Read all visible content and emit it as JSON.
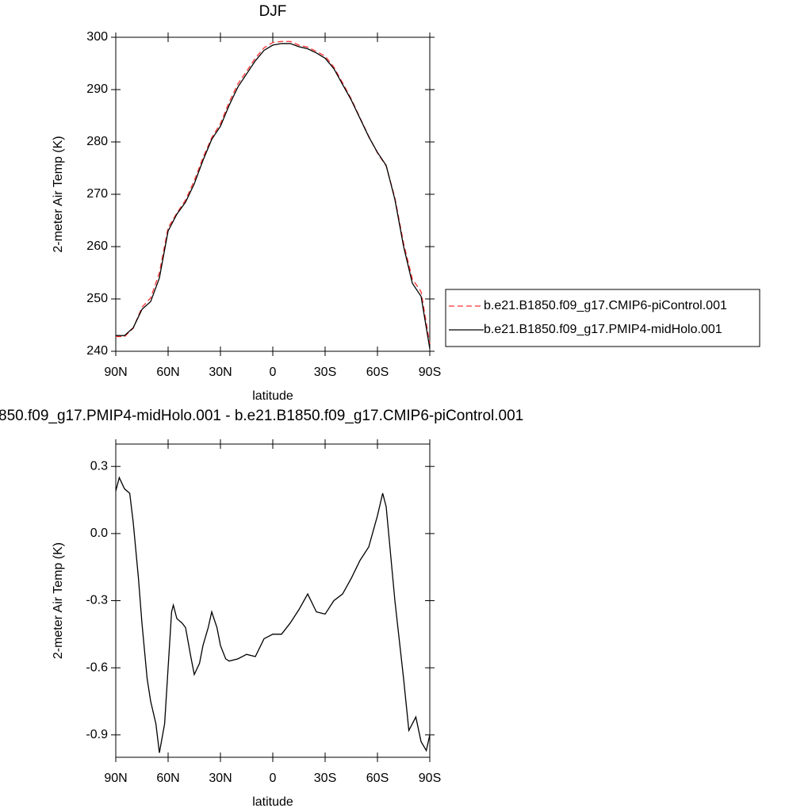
{
  "chart_data": [
    {
      "type": "line",
      "title": "DJF",
      "xlabel": "latitude",
      "ylabel": "2-meter Air Temp (K)",
      "x": [
        90,
        85,
        80,
        75,
        70,
        65,
        60,
        55,
        50,
        45,
        40,
        35,
        30,
        25,
        20,
        15,
        10,
        5,
        0,
        -5,
        -10,
        -15,
        -20,
        -25,
        -30,
        -35,
        -40,
        -45,
        -50,
        -55,
        -60,
        -65,
        -70,
        -75,
        -80,
        -85,
        -90
      ],
      "series": [
        {
          "name": "b.e21.B1850.f09_g17.CMIP6-piControl.001",
          "color": "#ff3030",
          "style": "dashed",
          "values": [
            242.8,
            242.8,
            244.4,
            248.4,
            250.2,
            255.0,
            263.6,
            266.4,
            268.9,
            272.6,
            277.0,
            280.8,
            283.5,
            287.6,
            291.1,
            293.5,
            296.0,
            298.0,
            299.0,
            299.2,
            299.2,
            298.5,
            298.1,
            297.3,
            296.4,
            294.3,
            291.3,
            288.2,
            284.6,
            281.1,
            277.9,
            275.4,
            269.3,
            260.6,
            253.8,
            251.4,
            241.4
          ]
        },
        {
          "name": "b.e21.B1850.f09_g17.PMIP4-midHolo.001",
          "color": "#000000",
          "style": "solid",
          "values": [
            243,
            243,
            244.5,
            248,
            249.5,
            254,
            263,
            266.2,
            268.5,
            272,
            276.5,
            280.5,
            283,
            287,
            290.5,
            293,
            295.5,
            297.5,
            298.5,
            298.8,
            298.8,
            298.2,
            297.8,
            297,
            296,
            294,
            291,
            288,
            284.5,
            281,
            278,
            275.5,
            269,
            260,
            253,
            250.5,
            240.5
          ]
        }
      ],
      "xlim": [
        90,
        -90
      ],
      "xticks": [
        {
          "value": 90,
          "label": "90N"
        },
        {
          "value": 60,
          "label": "60N"
        },
        {
          "value": 30,
          "label": "30N"
        },
        0,
        {
          "value": -30,
          "label": "30S"
        },
        {
          "value": -60,
          "label": "60S"
        },
        {
          "value": -90,
          "label": "90S"
        }
      ],
      "ylim": [
        240,
        300
      ],
      "yticks": [
        240,
        250,
        260,
        270,
        280,
        290,
        300
      ],
      "legend": "right"
    },
    {
      "type": "line",
      "title": "850.f09_g17.PMIP4-midHolo.001 - b.e21.B1850.f09_g17.CMIP6-piControl.001",
      "xlabel": "latitude",
      "ylabel": "2-meter Air Temp (K)",
      "x": [
        90,
        88,
        85,
        82,
        80,
        77,
        75,
        72,
        70,
        67,
        65,
        62,
        60,
        58,
        57,
        55,
        52,
        50,
        47,
        45,
        42,
        40,
        37,
        35,
        32,
        30,
        27,
        25,
        20,
        15,
        10,
        5,
        0,
        -5,
        -10,
        -15,
        -20,
        -25,
        -30,
        -35,
        -40,
        -45,
        -50,
        -55,
        -60,
        -63,
        -65,
        -70,
        -75,
        -78,
        -82,
        -85,
        -88,
        -90
      ],
      "series": [
        {
          "color": "#000000",
          "style": "solid",
          "values": [
            0.19,
            0.25,
            0.2,
            0.18,
            0.05,
            -0.2,
            -0.4,
            -0.65,
            -0.75,
            -0.85,
            -0.98,
            -0.85,
            -0.6,
            -0.35,
            -0.32,
            -0.38,
            -0.4,
            -0.42,
            -0.55,
            -0.63,
            -0.58,
            -0.5,
            -0.42,
            -0.35,
            -0.42,
            -0.5,
            -0.56,
            -0.57,
            -0.56,
            -0.54,
            -0.55,
            -0.47,
            -0.45,
            -0.45,
            -0.4,
            -0.34,
            -0.27,
            -0.35,
            -0.36,
            -0.3,
            -0.27,
            -0.2,
            -0.12,
            -0.06,
            0.08,
            0.18,
            0.12,
            -0.3,
            -0.65,
            -0.88,
            -0.82,
            -0.93,
            -0.97,
            -0.9
          ]
        }
      ],
      "xlim": [
        90,
        -90
      ],
      "xticks": [
        {
          "value": 90,
          "label": "90N"
        },
        {
          "value": 60,
          "label": "60N"
        },
        {
          "value": 30,
          "label": "30N"
        },
        0,
        {
          "value": -30,
          "label": "30S"
        },
        {
          "value": -60,
          "label": "60S"
        },
        {
          "value": -90,
          "label": "90S"
        }
      ],
      "ylim": [
        -1.0,
        0.4
      ],
      "yticks": [
        -0.9,
        -0.6,
        -0.3,
        {
          "value": 0,
          "label": "0.0"
        },
        0.3
      ]
    }
  ]
}
